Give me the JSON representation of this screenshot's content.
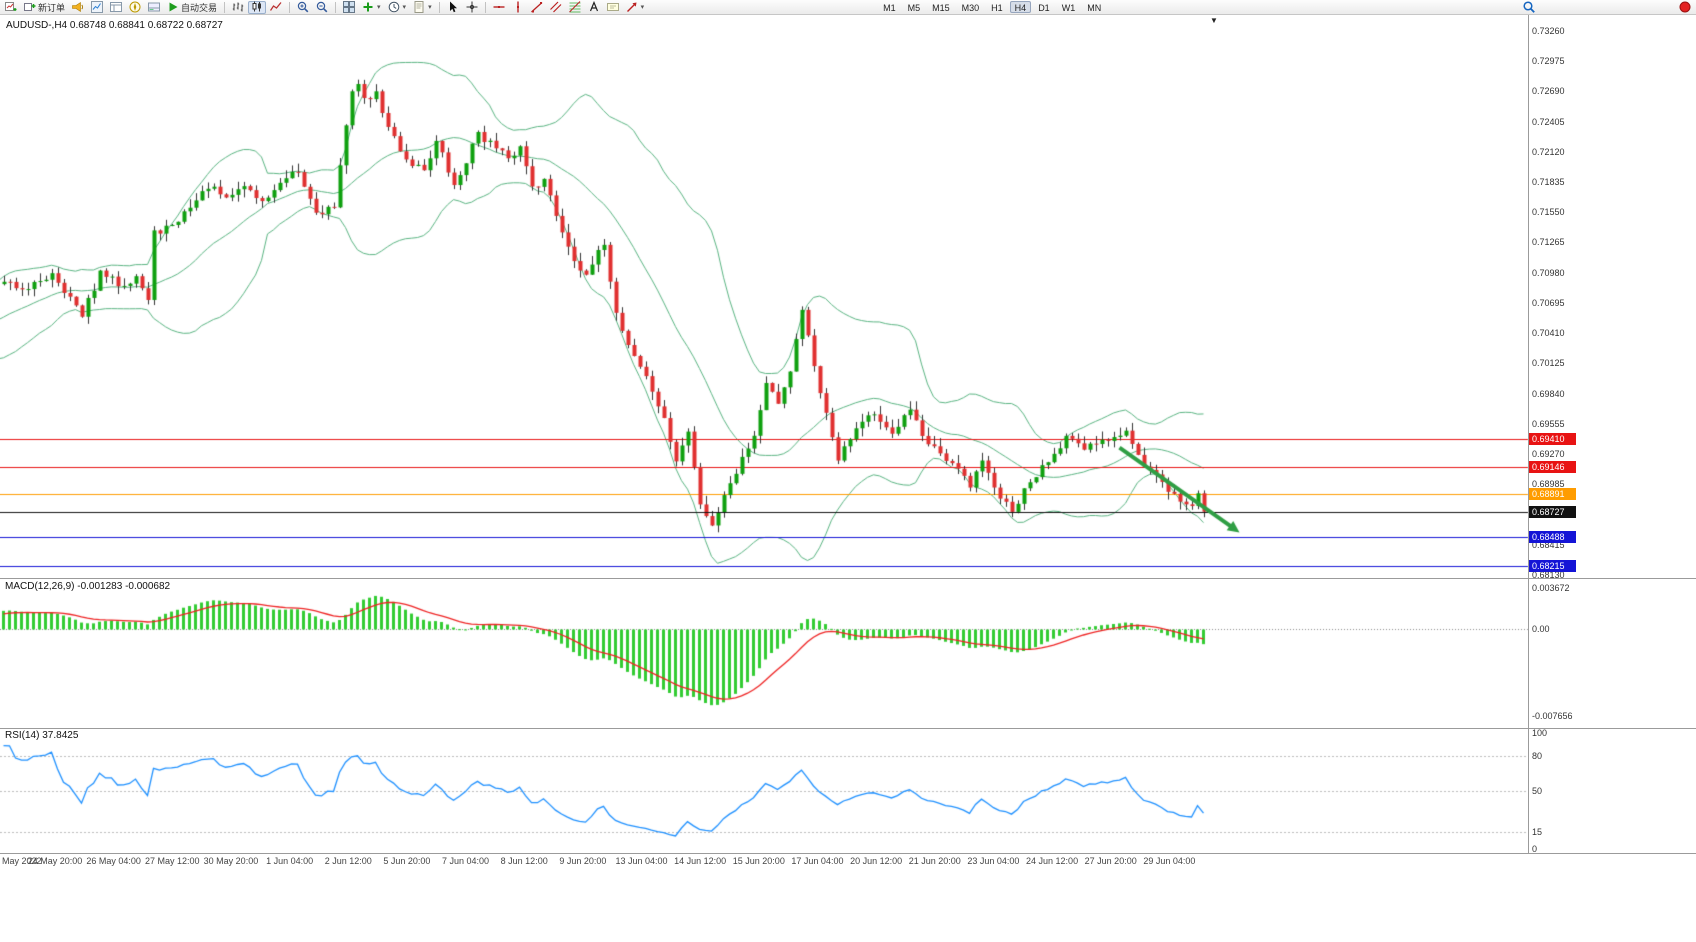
{
  "toolbar": {
    "buttons": [
      {
        "name": "new-chart",
        "icon": "new-chart"
      },
      {
        "name": "new-order",
        "label": "新订单",
        "icon": "order-plus"
      },
      {
        "name": "alerts-horn",
        "icon": "horn"
      },
      {
        "name": "market-watch",
        "icon": "market-watch"
      },
      {
        "name": "data-window",
        "icon": "data-window"
      },
      {
        "name": "navigator",
        "icon": "navigator"
      },
      {
        "name": "terminal",
        "icon": "terminal"
      },
      {
        "name": "auto-trading",
        "label": "自动交易",
        "icon": "play"
      },
      {
        "sep": true
      },
      {
        "name": "bar-chart-mode",
        "icon": "bar-chart"
      },
      {
        "name": "candlestick-mode",
        "icon": "candle-chart",
        "active": true
      },
      {
        "name": "line-chart-mode",
        "icon": "line-chart"
      },
      {
        "sep": true
      },
      {
        "name": "zoom-in",
        "icon": "zoom-in"
      },
      {
        "name": "zoom-out",
        "icon": "zoom-out"
      },
      {
        "sep": true
      },
      {
        "name": "tile-windows",
        "icon": "tile"
      },
      {
        "name": "indicators",
        "icon": "plus",
        "dropdown": true
      },
      {
        "name": "periods",
        "icon": "clock",
        "dropdown": true
      },
      {
        "name": "templates",
        "icon": "template",
        "dropdown": true
      },
      {
        "sep": true
      },
      {
        "name": "cursor",
        "icon": "cursor"
      },
      {
        "name": "crosshair",
        "icon": "crosshair"
      },
      {
        "sep": true
      },
      {
        "name": "horizontal-line",
        "icon": "hline"
      },
      {
        "name": "vertical-line",
        "icon": "vline"
      },
      {
        "name": "trendline",
        "icon": "trendline"
      },
      {
        "name": "equidistant-channel",
        "icon": "channel"
      },
      {
        "name": "fibonacci-retracement",
        "icon": "fibo"
      },
      {
        "name": "text",
        "icon": "text"
      },
      {
        "name": "text-label",
        "icon": "label"
      },
      {
        "name": "arrows",
        "icon": "arrow",
        "dropdown": true
      }
    ],
    "timeframes": [
      {
        "label": "M1"
      },
      {
        "label": "M5"
      },
      {
        "label": "M15"
      },
      {
        "label": "M30"
      },
      {
        "label": "H1"
      },
      {
        "label": "H4",
        "active": true
      },
      {
        "label": "D1"
      },
      {
        "label": "W1"
      },
      {
        "label": "MN"
      }
    ],
    "right_icons": [
      {
        "name": "search",
        "icon": "search"
      },
      {
        "name": "notification",
        "icon": "dot-red"
      }
    ]
  },
  "chart_data": {
    "type": "candlestick",
    "symbol": "AUDUSD-",
    "timeframe": "H4",
    "info_label": "AUDUSD-,H4 0.68748 0.68841 0.68722 0.68727",
    "ohlc": {
      "open": 0.68748,
      "high": 0.68841,
      "low": 0.68722,
      "close": 0.68727
    },
    "bars": 201,
    "seed": 42,
    "noise": 0.0009,
    "price_axis": {
      "min": 0.681,
      "max": 0.7342,
      "ticks": [
        "0.73260",
        "0.72975",
        "0.72690",
        "0.72405",
        "0.72120",
        "0.71835",
        "0.71550",
        "0.71265",
        "0.70980",
        "0.70695",
        "0.70410",
        "0.70125",
        "0.69840",
        "0.69555",
        "0.69270",
        "0.68985",
        "0.68700",
        "0.68415",
        "0.68130"
      ]
    },
    "time_axis": {
      "labels": [
        "May 2022",
        "24 May 20:00",
        "26 May 04:00",
        "27 May 12:00",
        "30 May 20:00",
        "1 Jun 04:00",
        "2 Jun 12:00",
        "5 Jun 20:00",
        "7 Jun 04:00",
        "8 Jun 12:00",
        "9 Jun 20:00",
        "13 Jun 04:00",
        "14 Jun 12:00",
        "15 Jun 20:00",
        "17 Jun 04:00",
        "20 Jun 12:00",
        "21 Jun 20:00",
        "23 Jun 04:00",
        "24 Jun 12:00",
        "27 Jun 20:00",
        "29 Jun 04:00"
      ]
    },
    "close_keypoints": [
      [
        -40,
        0.7005
      ],
      [
        -25,
        0.7018
      ],
      [
        -12,
        0.7046
      ],
      [
        0,
        0.709
      ],
      [
        4,
        0.7082
      ],
      [
        8,
        0.7098
      ],
      [
        11,
        0.7075
      ],
      [
        13,
        0.7056
      ],
      [
        16,
        0.7099
      ],
      [
        19,
        0.7086
      ],
      [
        22,
        0.7095
      ],
      [
        24,
        0.7072
      ],
      [
        25,
        0.7137
      ],
      [
        28,
        0.7142
      ],
      [
        31,
        0.716
      ],
      [
        34,
        0.7178
      ],
      [
        37,
        0.7168
      ],
      [
        40,
        0.718
      ],
      [
        43,
        0.7165
      ],
      [
        46,
        0.7182
      ],
      [
        49,
        0.7192
      ],
      [
        52,
        0.7155
      ],
      [
        55,
        0.716
      ],
      [
        58,
        0.727
      ],
      [
        59,
        0.7276
      ],
      [
        60,
        0.7262
      ],
      [
        62,
        0.7268
      ],
      [
        64,
        0.7235
      ],
      [
        67,
        0.7205
      ],
      [
        70,
        0.7195
      ],
      [
        72,
        0.7222
      ],
      [
        75,
        0.718
      ],
      [
        77,
        0.7202
      ],
      [
        79,
        0.7231
      ],
      [
        82,
        0.7215
      ],
      [
        84,
        0.7205
      ],
      [
        86,
        0.7217
      ],
      [
        88,
        0.718
      ],
      [
        90,
        0.7186
      ],
      [
        92,
        0.7152
      ],
      [
        95,
        0.711
      ],
      [
        97,
        0.7095
      ],
      [
        100,
        0.7125
      ],
      [
        102,
        0.706
      ],
      [
        104,
        0.703
      ],
      [
        107,
        0.7
      ],
      [
        110,
        0.696
      ],
      [
        112,
        0.692
      ],
      [
        114,
        0.6948
      ],
      [
        116,
        0.688
      ],
      [
        118,
        0.686
      ],
      [
        121,
        0.69
      ],
      [
        125,
        0.6945
      ],
      [
        127,
        0.6995
      ],
      [
        129,
        0.6975
      ],
      [
        131,
        0.7005
      ],
      [
        133,
        0.7062
      ],
      [
        135,
        0.701
      ],
      [
        137,
        0.6965
      ],
      [
        139,
        0.692
      ],
      [
        142,
        0.6952
      ],
      [
        145,
        0.6965
      ],
      [
        148,
        0.6945
      ],
      [
        151,
        0.6968
      ],
      [
        153,
        0.6945
      ],
      [
        155,
        0.6935
      ],
      [
        157,
        0.692
      ],
      [
        159,
        0.6912
      ],
      [
        161,
        0.6895
      ],
      [
        163,
        0.692
      ],
      [
        166,
        0.6885
      ],
      [
        168,
        0.6872
      ],
      [
        171,
        0.69
      ],
      [
        174,
        0.692
      ],
      [
        177,
        0.6945
      ],
      [
        180,
        0.693
      ],
      [
        183,
        0.694
      ],
      [
        187,
        0.695
      ],
      [
        190,
        0.6915
      ],
      [
        193,
        0.69
      ],
      [
        196,
        0.6882
      ],
      [
        198,
        0.6878
      ],
      [
        199,
        0.689
      ],
      [
        200,
        0.68727
      ]
    ],
    "candle_colors": {
      "up": "#0fa00f",
      "down": "#e03030",
      "wick": "#333333"
    },
    "bollinger": {
      "period": 20,
      "deviation": 2,
      "color": "#58b380"
    },
    "horizontal_lines": [
      {
        "name": "resistance-1",
        "price": 0.6941,
        "label": "0.69410",
        "color": "#e81313"
      },
      {
        "name": "resistance-2",
        "price": 0.69146,
        "label": "0.69146",
        "color": "#e81313"
      },
      {
        "name": "pivot-orange",
        "price": 0.68891,
        "label": "0.68891",
        "color": "#ff9c00"
      },
      {
        "name": "current-price",
        "price": 0.68727,
        "label": "0.68727",
        "color": "#111111"
      },
      {
        "name": "support-1",
        "price": 0.68488,
        "label": "0.68488",
        "color": "#1414d6"
      },
      {
        "name": "support-2",
        "price": 0.68215,
        "label": "0.68215",
        "color": "#1414d6"
      }
    ],
    "trend_arrow": {
      "from_bar": 186,
      "from_price": 0.6933,
      "to_bar": 206,
      "to_price": 0.6853,
      "color": "#2f9e44"
    },
    "macd": {
      "label": "MACD(12,26,9)",
      "values_label": "-0.001283 -0.000682",
      "fast": 12,
      "slow": 26,
      "signal": 9,
      "current_macd": -0.001283,
      "current_signal": -0.000682,
      "axis_ticks": [
        "0.003672",
        "0.00",
        "-0.007656"
      ],
      "range": {
        "max": 0.003672,
        "min": -0.007656
      },
      "histogram_color": "#33cc33",
      "signal_color": "#ee2222"
    },
    "rsi": {
      "label": "RSI(14)",
      "value_label": "37.8425",
      "period": 14,
      "current": 37.8425,
      "axis_ticks": [
        "100",
        "80",
        "50",
        "15",
        "0"
      ],
      "levels": [
        80,
        50,
        15
      ],
      "color": "#1e90ff",
      "range": {
        "min": 0,
        "max": 100
      }
    }
  }
}
